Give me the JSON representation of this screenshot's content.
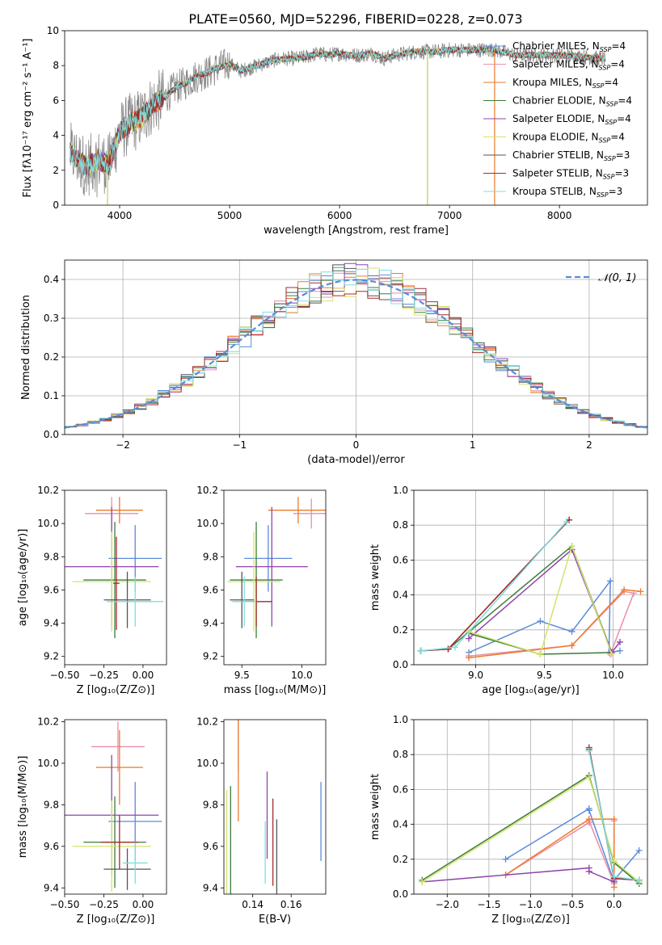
{
  "title": "PLATE=0560, MJD=52296, FIBERID=0228, z=0.073",
  "colors": {
    "Chabrier MILES": "#5b8bd9",
    "Salpeter MILES": "#ea8fa4",
    "Kroupa MILES": "#ec7a2c",
    "Chabrier ELODIE": "#3a7d3a",
    "Salpeter ELODIE": "#8e44ad",
    "Kroupa ELODIE": "#d4e36a",
    "Chabrier STELIB": "#555555",
    "Salpeter STELIB": "#a52a2a",
    "Kroupa STELIB": "#7fdede",
    "data": "#888888"
  },
  "chart_data": [
    {
      "id": "spectrum",
      "type": "line",
      "xlabel": "wavelength [Angstrom, rest frame]",
      "ylabel": "Flux [fλ10⁻¹⁷ erg cm⁻² s⁻¹ A⁻¹]",
      "xlim": [
        3500,
        8800
      ],
      "ylim": [
        0,
        10
      ],
      "xticks": [
        4000,
        5000,
        6000,
        7000,
        8000
      ],
      "yticks": [
        0,
        2,
        4,
        6,
        8,
        10
      ],
      "legend_position": "upper-right",
      "legend": [
        "Chabrier MILES, N_SSP=4",
        "Salpeter MILES, N_SSP=4",
        "Kroupa MILES, N_SSP=4",
        "Chabrier ELODIE, N_SSP=4",
        "Salpeter ELODIE, N_SSP=4",
        "Kroupa ELODIE, N_SSP=4",
        "Chabrier STELIB, N_SSP=3",
        "Salpeter STELIB, N_SSP=3",
        "Kroupa STELIB, N_SSP=3"
      ],
      "continuum_points": [
        [
          3550,
          3.0
        ],
        [
          3700,
          2.2
        ],
        [
          3800,
          2.6
        ],
        [
          3900,
          2.3
        ],
        [
          4000,
          4.2
        ],
        [
          4100,
          4.7
        ],
        [
          4200,
          5.0
        ],
        [
          4300,
          5.8
        ],
        [
          4400,
          6.1
        ],
        [
          4500,
          6.7
        ],
        [
          4600,
          7.0
        ],
        [
          4700,
          7.4
        ],
        [
          4800,
          7.6
        ],
        [
          4900,
          7.9
        ],
        [
          5000,
          8.1
        ],
        [
          5100,
          7.7
        ],
        [
          5200,
          7.9
        ],
        [
          5300,
          8.1
        ],
        [
          5400,
          8.3
        ],
        [
          5500,
          8.4
        ],
        [
          5600,
          8.4
        ],
        [
          5700,
          8.5
        ],
        [
          5800,
          8.7
        ],
        [
          5900,
          8.6
        ],
        [
          6000,
          8.7
        ],
        [
          6100,
          8.6
        ],
        [
          6200,
          8.6
        ],
        [
          6300,
          8.7
        ],
        [
          6400,
          8.4
        ],
        [
          6500,
          8.6
        ],
        [
          6600,
          8.7
        ],
        [
          6700,
          8.8
        ],
        [
          6800,
          8.8
        ],
        [
          6900,
          8.8
        ],
        [
          7000,
          8.9
        ],
        [
          7200,
          8.9
        ],
        [
          7400,
          8.9
        ],
        [
          7600,
          8.6
        ],
        [
          7800,
          8.6
        ],
        [
          8000,
          8.6
        ],
        [
          8200,
          8.5
        ],
        [
          8400,
          8.4
        ]
      ]
    },
    {
      "id": "residuals",
      "type": "step",
      "xlabel": "(data-model)/error",
      "ylabel": "Normed distribution",
      "xlim": [
        -2.5,
        2.5
      ],
      "ylim": [
        0,
        0.45
      ],
      "xticks": [
        -2,
        -1,
        0,
        1,
        2
      ],
      "yticks": [
        0.0,
        0.1,
        0.2,
        0.3,
        0.4
      ],
      "grid": true,
      "legend": [
        "𝒩(0, 1)"
      ],
      "legend_position": "upper-right",
      "bin_width": 0.1,
      "gaussian": {
        "mean": 0,
        "sigma": 1
      }
    },
    {
      "id": "age-vs-Z",
      "type": "errorbar",
      "xlabel": "Z [log₁₀(Z/Z⊙)]",
      "ylabel": "age  [log₁₀(age/yr)]",
      "xlim": [
        -0.5,
        0.15
      ],
      "ylim": [
        9.15,
        10.2
      ],
      "xticks": [
        -0.5,
        -0.25,
        0.0
      ],
      "xtick_labels": [
        "−0.50",
        "−0.25",
        "0.00"
      ],
      "yticks": [
        9.2,
        9.4,
        9.6,
        9.8,
        10.0,
        10.2
      ],
      "points": [
        {
          "series": "Chabrier MILES",
          "x": -0.05,
          "xerr": 0.17,
          "y": 9.79,
          "yerr": 0.2
        },
        {
          "series": "Salpeter MILES",
          "x": -0.2,
          "xerr": 0.17,
          "y": 10.06,
          "yerr": 0.1
        },
        {
          "series": "Kroupa MILES",
          "x": -0.15,
          "xerr": 0.15,
          "y": 10.08,
          "yerr": 0.08
        },
        {
          "series": "Chabrier ELODIE",
          "x": -0.18,
          "xerr": 0.2,
          "y": 9.66,
          "yerr": 0.35
        },
        {
          "series": "Salpeter ELODIE",
          "x": -0.2,
          "xerr": 0.3,
          "y": 9.74,
          "yerr": 0.36
        },
        {
          "series": "Kroupa ELODIE",
          "x": -0.2,
          "xerr": 0.25,
          "y": 9.65,
          "yerr": 0.3
        },
        {
          "series": "Chabrier STELIB",
          "x": -0.1,
          "xerr": 0.15,
          "y": 9.54,
          "yerr": 0.17
        },
        {
          "series": "Salpeter STELIB",
          "x": -0.17,
          "xerr": 0.02,
          "y": 9.64,
          "yerr": 0.28
        },
        {
          "series": "Kroupa STELIB",
          "x": -0.05,
          "xerr": 0.18,
          "y": 9.53,
          "yerr": 0.15
        }
      ]
    },
    {
      "id": "age-vs-mass",
      "type": "errorbar",
      "xlabel": "mass [log₁₀(M/M⊙)]",
      "ylabel": "",
      "xlim": [
        9.35,
        10.2
      ],
      "ylim": [
        9.15,
        10.2
      ],
      "xticks": [
        9.5,
        10.0
      ],
      "yticks": [
        9.2,
        9.4,
        9.6,
        9.8,
        10.0,
        10.2
      ],
      "points": [
        {
          "series": "Chabrier MILES",
          "x": 9.72,
          "xerr": 0.2,
          "y": 9.79,
          "yerr": 0.2
        },
        {
          "series": "Salpeter MILES",
          "x": 10.08,
          "xerr": 0.15,
          "y": 10.06,
          "yerr": 0.09
        },
        {
          "series": "Kroupa MILES",
          "x": 9.97,
          "xerr": 0.25,
          "y": 10.08,
          "yerr": 0.08
        },
        {
          "series": "Chabrier ELODIE",
          "x": 9.62,
          "xerr": 0.22,
          "y": 9.66,
          "yerr": 0.35
        },
        {
          "series": "Salpeter ELODIE",
          "x": 9.75,
          "xerr": 0.3,
          "y": 9.74,
          "yerr": 0.36
        },
        {
          "series": "Kroupa ELODIE",
          "x": 9.6,
          "xerr": 0.22,
          "y": 9.65,
          "yerr": 0.3
        },
        {
          "series": "Chabrier STELIB",
          "x": 9.5,
          "xerr": 0.1,
          "y": 9.54,
          "yerr": 0.17
        },
        {
          "series": "Salpeter STELIB",
          "x": 9.62,
          "xerr": 0.13,
          "y": 9.53,
          "yerr": 0.15
        },
        {
          "series": "Kroupa STELIB",
          "x": 9.52,
          "xerr": 0.1,
          "y": 9.53,
          "yerr": 0.15
        }
      ]
    },
    {
      "id": "weight-vs-age",
      "type": "line",
      "xlabel": "age  [log₁₀(age/yr)]",
      "ylabel": "mass weight",
      "xlim": [
        8.55,
        10.25
      ],
      "ylim": [
        0,
        1
      ],
      "xticks": [
        9.0,
        9.5,
        10.0
      ],
      "yticks": [
        0.0,
        0.2,
        0.4,
        0.6,
        0.8,
        1.0
      ],
      "grid": true,
      "series": [
        {
          "name": "Chabrier MILES",
          "x": [
            8.95,
            9.47,
            9.7,
            9.98,
            9.97,
            10.05
          ],
          "y": [
            0.07,
            0.25,
            0.19,
            0.48,
            0.07,
            0.08
          ]
        },
        {
          "name": "Salpeter MILES",
          "x": [
            8.95,
            9.7,
            10.08,
            10.15,
            9.98
          ],
          "y": [
            0.05,
            0.11,
            0.42,
            0.41,
            0.06
          ]
        },
        {
          "name": "Kroupa MILES",
          "x": [
            8.95,
            9.7,
            10.08,
            10.2
          ],
          "y": [
            0.04,
            0.11,
            0.43,
            0.42
          ]
        },
        {
          "name": "Chabrier ELODIE",
          "x": [
            8.6,
            8.8,
            9.7,
            9.99,
            9.47,
            8.95
          ],
          "y": [
            0.08,
            0.09,
            0.68,
            0.07,
            0.06,
            0.18
          ]
        },
        {
          "name": "Salpeter ELODIE",
          "x": [
            8.95,
            9.7,
            9.99,
            10.05
          ],
          "y": [
            0.15,
            0.66,
            0.07,
            0.13
          ]
        },
        {
          "name": "Kroupa ELODIE",
          "x": [
            8.95,
            9.47,
            9.7,
            9.99
          ],
          "y": [
            0.19,
            0.06,
            0.68,
            0.06
          ]
        },
        {
          "name": "Chabrier STELIB",
          "x": [
            8.6,
            8.8,
            9.68
          ],
          "y": [
            0.08,
            0.09,
            0.83
          ]
        },
        {
          "name": "Salpeter STELIB",
          "x": [
            8.6,
            8.8,
            9.68
          ],
          "y": [
            0.08,
            0.09,
            0.83
          ]
        },
        {
          "name": "Kroupa STELIB",
          "x": [
            8.6,
            8.85,
            9.66
          ],
          "y": [
            0.08,
            0.1,
            0.82
          ]
        }
      ]
    },
    {
      "id": "mass-vs-Z",
      "type": "errorbar",
      "xlabel": "Z [log₁₀(Z/Z⊙)]",
      "ylabel": "mass [log₁₀(M/M⊙)]",
      "xlim": [
        -0.5,
        0.15
      ],
      "ylim": [
        9.37,
        10.21
      ],
      "xticks": [
        -0.5,
        -0.25,
        0.0
      ],
      "xtick_labels": [
        "−0.50",
        "−0.25",
        "0.00"
      ],
      "yticks": [
        9.4,
        9.6,
        9.8,
        10.0,
        10.2
      ],
      "points": [
        {
          "series": "Chabrier MILES",
          "x": -0.05,
          "xerr": 0.17,
          "y": 9.72,
          "yerr": 0.19
        },
        {
          "series": "Salpeter MILES",
          "x": -0.16,
          "xerr": 0.17,
          "y": 10.08,
          "yerr": 0.12
        },
        {
          "series": "Kroupa MILES",
          "x": -0.15,
          "xerr": 0.15,
          "y": 9.98,
          "yerr": 0.18
        },
        {
          "series": "Chabrier ELODIE",
          "x": -0.18,
          "xerr": 0.2,
          "y": 9.62,
          "yerr": 0.22
        },
        {
          "series": "Salpeter ELODIE",
          "x": -0.2,
          "xerr": 0.3,
          "y": 9.75,
          "yerr": 0.29
        },
        {
          "series": "Kroupa ELODIE",
          "x": -0.2,
          "xerr": 0.25,
          "y": 9.6,
          "yerr": 0.22
        },
        {
          "series": "Chabrier STELIB",
          "x": -0.1,
          "xerr": 0.15,
          "y": 9.49,
          "yerr": 0.1
        },
        {
          "series": "Salpeter STELIB",
          "x": -0.15,
          "xerr": 0.12,
          "y": 9.62,
          "yerr": 0.13
        },
        {
          "series": "Kroupa STELIB",
          "x": -0.05,
          "xerr": 0.08,
          "y": 9.52,
          "yerr": 0.1
        }
      ]
    },
    {
      "id": "mass-vs-EBV",
      "type": "errorbar",
      "xlabel": "E(B-V)",
      "ylabel": "",
      "xlim": [
        0.125,
        0.178
      ],
      "ylim": [
        9.37,
        10.21
      ],
      "xticks": [
        0.14,
        0.16
      ],
      "yticks": [
        9.4,
        9.6,
        9.8,
        10.0,
        10.2
      ],
      "points": [
        {
          "series": "Chabrier MILES",
          "x": 0.1755,
          "y": 9.72,
          "yerr": 0.19
        },
        {
          "series": "Salpeter MILES",
          "x": 0.1325,
          "y": 10.08,
          "yerr": 0.12
        },
        {
          "series": "Kroupa MILES",
          "x": 0.1325,
          "y": 9.98,
          "yerr": 0.26
        },
        {
          "series": "Chabrier ELODIE",
          "x": 0.1285,
          "y": 9.63,
          "yerr": 0.26
        },
        {
          "series": "Salpeter ELODIE",
          "x": 0.1475,
          "y": 9.75,
          "yerr": 0.21
        },
        {
          "series": "Kroupa ELODIE",
          "x": 0.1265,
          "y": 9.62,
          "yerr": 0.25
        },
        {
          "series": "Chabrier STELIB",
          "x": 0.1525,
          "y": 9.55,
          "yerr": 0.18
        },
        {
          "series": "Salpeter STELIB",
          "x": 0.1505,
          "y": 9.62,
          "yerr": 0.21
        },
        {
          "series": "Kroupa STELIB",
          "x": 0.1465,
          "y": 9.57,
          "yerr": 0.15
        }
      ]
    },
    {
      "id": "weight-vs-Z",
      "type": "line",
      "xlabel": "Z [log₁₀(Z/Z⊙)]",
      "ylabel": "mass weight",
      "xlim": [
        -2.4,
        0.4
      ],
      "ylim": [
        0,
        1
      ],
      "xticks": [
        -2.0,
        -1.5,
        -1.0,
        -0.5,
        0.0
      ],
      "xtick_labels": [
        "−2.0",
        "−1.5",
        "−1.0",
        "−0.5",
        "0.0"
      ],
      "yticks": [
        0.0,
        0.2,
        0.4,
        0.6,
        0.8,
        1.0
      ],
      "grid": true,
      "series": [
        {
          "name": "Chabrier MILES",
          "x": [
            -1.3,
            -0.3,
            -0.3,
            0.0,
            0.0,
            0.3
          ],
          "y": [
            0.2,
            0.49,
            0.48,
            0.07,
            0.08,
            0.25
          ]
        },
        {
          "name": "Salpeter MILES",
          "x": [
            -1.3,
            -0.3,
            -0.3,
            0.0,
            0.0
          ],
          "y": [
            0.11,
            0.41,
            0.42,
            0.06,
            0.42
          ]
        },
        {
          "name": "Kroupa MILES",
          "x": [
            -1.3,
            -0.3,
            0.0,
            0.0
          ],
          "y": [
            0.11,
            0.43,
            0.43,
            0.04
          ]
        },
        {
          "name": "Chabrier ELODIE",
          "x": [
            -2.3,
            -0.3,
            0.0,
            0.3
          ],
          "y": [
            0.08,
            0.68,
            0.18,
            0.06
          ]
        },
        {
          "name": "Salpeter ELODIE",
          "x": [
            -2.3,
            -0.3,
            -0.3,
            0.0
          ],
          "y": [
            0.07,
            0.15,
            0.13,
            0.07
          ]
        },
        {
          "name": "Kroupa ELODIE",
          "x": [
            -2.3,
            -0.3,
            0.0,
            0.3
          ],
          "y": [
            0.07,
            0.67,
            0.19,
            0.07
          ]
        },
        {
          "name": "Chabrier STELIB",
          "x": [
            -0.3,
            0.0,
            0.3
          ],
          "y": [
            0.84,
            0.09,
            0.08
          ]
        },
        {
          "name": "Salpeter STELIB",
          "x": [
            -0.3,
            0.0,
            0.3
          ],
          "y": [
            0.83,
            0.09,
            0.08
          ]
        },
        {
          "name": "Kroupa STELIB",
          "x": [
            -0.3,
            0.0,
            0.3
          ],
          "y": [
            0.82,
            0.1,
            0.08
          ]
        }
      ]
    }
  ]
}
